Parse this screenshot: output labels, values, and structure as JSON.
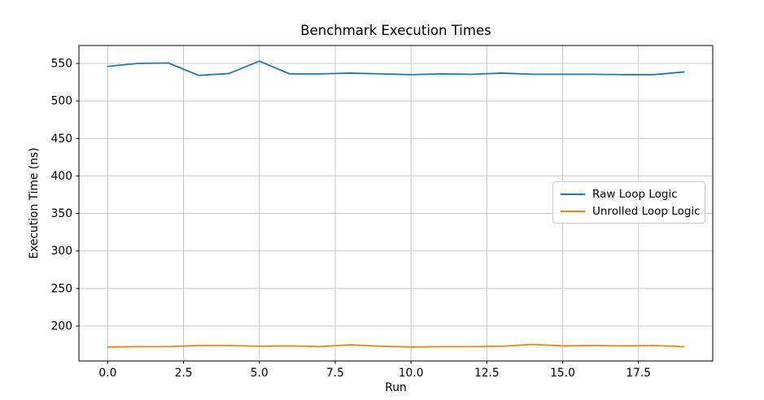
{
  "figure": {
    "background": "#ffffff"
  },
  "chart_data": {
    "type": "line",
    "title": "Benchmark Execution Times",
    "xlabel": "Run",
    "ylabel": "Execution Time (ns)",
    "x": [
      0,
      1,
      2,
      3,
      4,
      5,
      6,
      7,
      8,
      9,
      10,
      11,
      12,
      13,
      14,
      15,
      16,
      17,
      18,
      19
    ],
    "series": [
      {
        "name": "Raw Loop Logic",
        "color": "#1f77b4",
        "values": [
          546,
          550,
          550.5,
          534,
          536.5,
          553,
          536,
          536,
          537,
          536,
          535,
          536,
          535.5,
          537,
          535.5,
          535.5,
          535.5,
          535,
          535,
          538.5
        ]
      },
      {
        "name": "Unrolled Loop Logic",
        "color": "#ff7f0e",
        "values": [
          172,
          172.5,
          172.5,
          174,
          174,
          173,
          173.5,
          172.5,
          175,
          173,
          172,
          172.5,
          172.5,
          173,
          175.5,
          173.5,
          174,
          173.5,
          174,
          172.5
        ]
      }
    ],
    "xlim": [
      -0.95,
      19.95
    ],
    "ylim": [
      153.4,
      573.8
    ],
    "xticks": {
      "values": [
        0,
        2.5,
        5,
        7.5,
        10,
        12.5,
        15,
        17.5
      ],
      "labels": [
        "0.0",
        "2.5",
        "5.0",
        "7.5",
        "10.0",
        "12.5",
        "15.0",
        "17.5"
      ]
    },
    "yticks": {
      "values": [
        200,
        250,
        300,
        350,
        400,
        450,
        500,
        550
      ],
      "labels": [
        "200",
        "250",
        "300",
        "350",
        "400",
        "450",
        "500",
        "550"
      ]
    },
    "grid": true,
    "legend_position": "center-right",
    "colors": {
      "grid": "#c9c9c9",
      "spine": "#000000",
      "tick_text": "#000000"
    }
  }
}
